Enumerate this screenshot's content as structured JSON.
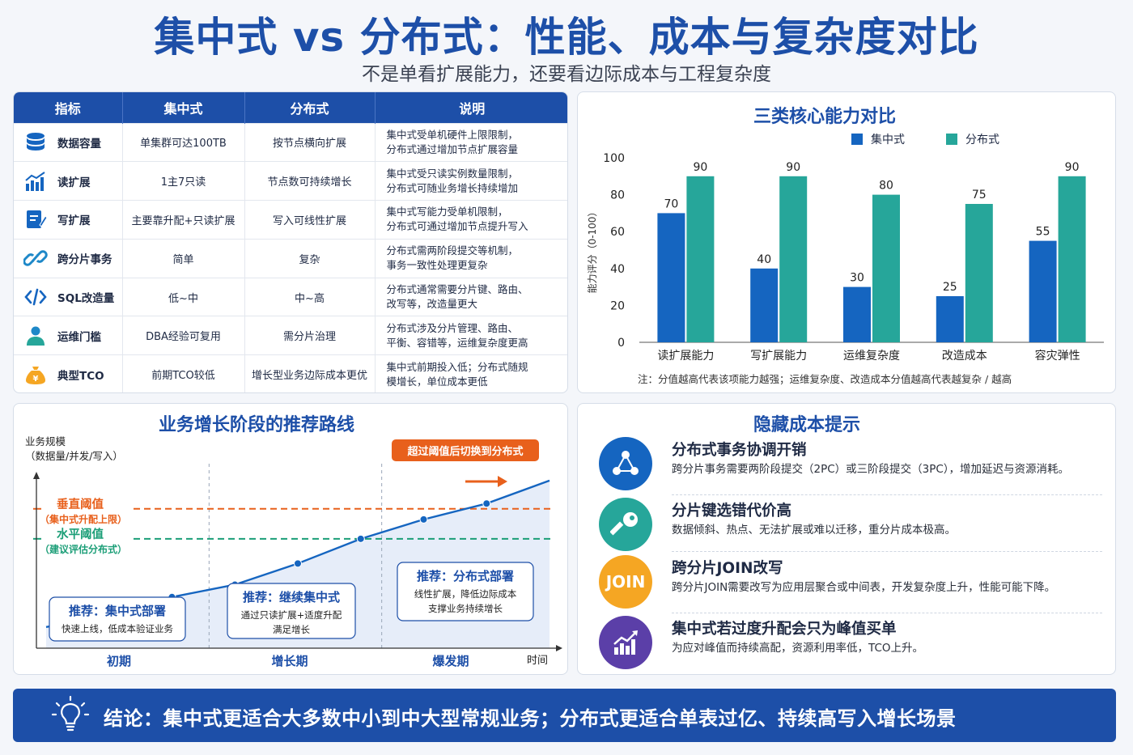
{
  "title": "集中式 vs 分布式：性能、成本与复杂度对比",
  "subtitle": "不是单看扩展能力，还要看边际成本与工程复杂度",
  "table": {
    "headers": [
      "指标",
      "集中式",
      "分布式",
      "说明"
    ],
    "rows": [
      {
        "icon": "database-icon",
        "metric": "数据容量",
        "central": "单集群可达100TB",
        "distributed": "按节点横向扩展",
        "note1": "集中式受单机硬件上限限制，",
        "note2": "分布式通过增加节点扩展容量"
      },
      {
        "icon": "bar-chart-icon",
        "metric": "读扩展",
        "central": "1主7只读",
        "distributed": "节点数可持续增长",
        "note1": "集中式受只读实例数量限制，",
        "note2": "分布式可随业务增长持续增加"
      },
      {
        "icon": "edit-icon",
        "metric": "写扩展",
        "central": "主要靠升配+只读扩展",
        "distributed": "写入可线性扩展",
        "note1": "集中式写能力受单机限制，",
        "note2": "分布式可通过增加节点提升写入"
      },
      {
        "icon": "link-icon",
        "metric": "跨分片事务",
        "central": "简单",
        "distributed": "复杂",
        "note1": "分布式需两阶段提交等机制，",
        "note2": "事务一致性处理更复杂"
      },
      {
        "icon": "code-icon",
        "metric": "SQL改造量",
        "central": "低~中",
        "distributed": "中~高",
        "note1": "分布式通常需要分片键、路由、",
        "note2": "改写等，改造量更大"
      },
      {
        "icon": "user-icon",
        "metric": "运维门槛",
        "central": "DBA经验可复用",
        "distributed": "需分片治理",
        "note1": "分布式涉及分片管理、路由、",
        "note2": "平衡、容错等，运维复杂度更高"
      },
      {
        "icon": "money-bag-icon",
        "metric": "典型TCO",
        "central": "前期TCO较低",
        "distributed": "增长型业务边际成本更优",
        "note1": "集中式前期投入低；分布式随规",
        "note2": "模增长，单位成本更低"
      }
    ]
  },
  "chart_data": [
    {
      "type": "bar",
      "title": "三类核心能力对比",
      "categories": [
        "读扩展能力",
        "写扩展能力",
        "运维复杂度",
        "改造成本",
        "容灾弹性"
      ],
      "series": [
        {
          "name": "集中式",
          "values": [
            70,
            40,
            30,
            25,
            55
          ],
          "color": "#1565c0"
        },
        {
          "name": "分布式",
          "values": [
            90,
            90,
            80,
            75,
            90
          ],
          "color": "#26a69a"
        }
      ],
      "ylabel": "能力评分（0-100）",
      "ylim": [
        0,
        100
      ],
      "yticks": [
        0,
        20,
        40,
        60,
        80,
        100
      ],
      "grid": false,
      "legend": "top-center",
      "note": "注：分值越高代表该项能力越强；运维复杂度、改造成本分值越高代表越复杂 / 越高"
    },
    {
      "type": "line",
      "title": "业务增长阶段的推荐路线",
      "ylabel_line1": "业务规模",
      "ylabel_line2": "（数据量/并发/写入）",
      "xlabel": "时间",
      "stages": [
        "初期",
        "增长期",
        "爆发期"
      ],
      "values": [
        0.12,
        0.18,
        0.29,
        0.36,
        0.48,
        0.62,
        0.73,
        0.82,
        0.95
      ],
      "thresholds": [
        {
          "label": "垂直阈值",
          "sublabel": "（集中式升配上限）",
          "level": 0.79,
          "color": "#e8601c"
        },
        {
          "label": "水平阈值",
          "sublabel": "（建议评估分布式）",
          "level": 0.62,
          "color": "#1b9e77"
        }
      ],
      "callout": "超过阈值后切换到分布式",
      "boxes": [
        {
          "title": "推荐：集中式部署",
          "line1": "快速上线，低成本验证业务",
          "line2": ""
        },
        {
          "title": "推荐：继续集中式",
          "line1": "通过只读扩展+适度升配",
          "line2": "满足增长"
        },
        {
          "title": "推荐：分布式部署",
          "line1": "线性扩展，降低边际成本",
          "line2": "支撑业务持续增长"
        }
      ]
    }
  ],
  "hidden_costs": {
    "title": "隐藏成本提示",
    "items": [
      {
        "icon": "network-icon",
        "icon_text": "",
        "color": "#1565c0",
        "head": "分布式事务协调开销",
        "desc": "跨分片事务需要两阶段提交（2PC）或三阶段提交（3PC），增加延迟与资源消耗。"
      },
      {
        "icon": "key-icon",
        "icon_text": "",
        "color": "#26a69a",
        "head": "分片键选错代价高",
        "desc": "数据倾斜、热点、无法扩展或难以迁移，重分片成本极高。"
      },
      {
        "icon": "join-icon",
        "icon_text": "JOIN",
        "color": "#f5a623",
        "head": "跨分片JOIN改写",
        "desc": "跨分片JOIN需要改写为应用层聚合或中间表，开发复杂度上升，性能可能下降。"
      },
      {
        "icon": "trend-up-icon",
        "icon_text": "",
        "color": "#5b3fa8",
        "head": "集中式若过度升配会只为峰值买单",
        "desc": "为应对峰值而持续高配，资源利用率低，TCO上升。"
      }
    ]
  },
  "conclusion": "结论：集中式更适合大多数中小到中大型常规业务；分布式更适合单表过亿、持续高写入增长场景"
}
